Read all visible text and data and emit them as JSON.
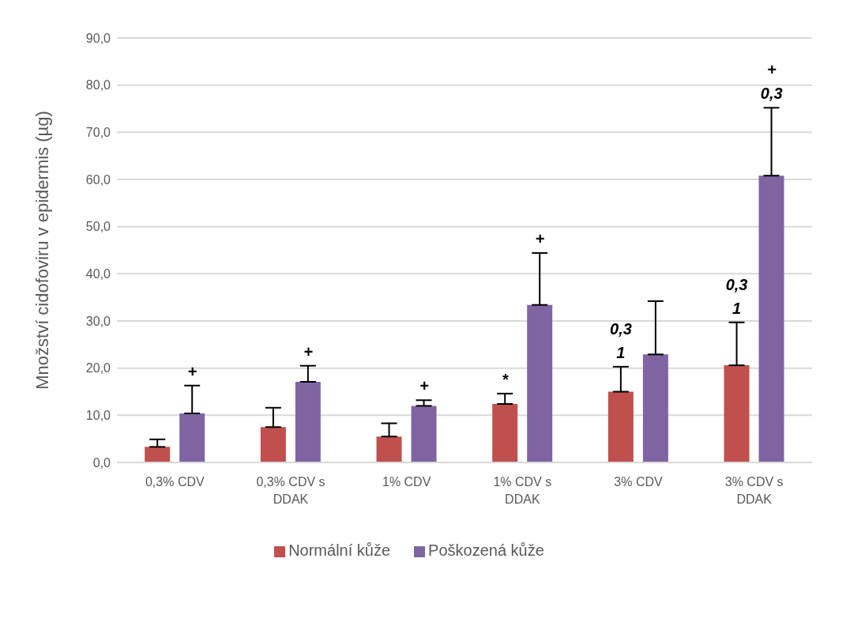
{
  "chart_data": {
    "type": "bar",
    "ylabel": "Množství cidofoviru v epidermis (µg)",
    "categories": [
      "0,3% CDV",
      "0,3% CDV s DDAK",
      "1% CDV",
      "1% CDV s DDAK",
      "3% CDV",
      "3% CDV s DDAK"
    ],
    "series": [
      {
        "name": "Normální kůže",
        "color": "#c0504d",
        "values": [
          3.3,
          7.5,
          5.5,
          12.4,
          15.0,
          20.6
        ],
        "errors": [
          [
            3.3,
            4.9
          ],
          [
            7.5,
            11.6
          ],
          [
            5.5,
            8.3
          ],
          [
            12.4,
            14.6
          ],
          [
            15.0,
            20.3
          ],
          [
            20.6,
            29.7
          ]
        ]
      },
      {
        "name": "Poškozená kůže",
        "color": "#8064a2",
        "values": [
          10.4,
          17.1,
          12.0,
          33.4,
          22.9,
          60.8
        ],
        "errors": [
          [
            10.4,
            16.3
          ],
          [
            17.1,
            20.5
          ],
          [
            12.0,
            13.2
          ],
          [
            33.4,
            44.4
          ],
          [
            22.9,
            34.2
          ],
          [
            60.8,
            75.2
          ]
        ]
      }
    ],
    "annotations": [
      "+",
      "+",
      "+",
      "*",
      "+",
      "0,3\n1",
      "0,3\n1",
      "+\n0,3"
    ],
    "ylim": [
      0,
      90
    ],
    "yticks": [
      {
        "value": 0,
        "label": "0,0"
      },
      {
        "value": 10,
        "label": "10,0"
      },
      {
        "value": 20,
        "label": "20,0"
      },
      {
        "value": 30,
        "label": "30,0"
      },
      {
        "value": 40,
        "label": "40,0"
      },
      {
        "value": 50,
        "label": "50,0"
      },
      {
        "value": 60,
        "label": "60,0"
      },
      {
        "value": 70,
        "label": "70,0"
      },
      {
        "value": 80,
        "label": "80,0"
      },
      {
        "value": 90,
        "label": "90,0"
      }
    ],
    "grid": "y",
    "legend": "bottom"
  }
}
